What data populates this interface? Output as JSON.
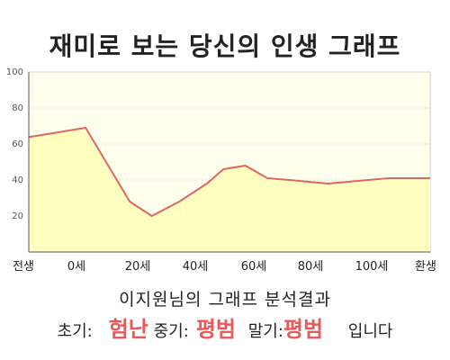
{
  "chart_data": {
    "type": "area",
    "title": "재미로 보는 당신의 인생 그래프",
    "x_tick_labels": [
      "전생",
      "0세",
      "20세",
      "40세",
      "60세",
      "80세",
      "100세",
      "환생"
    ],
    "ylim": [
      0,
      100
    ],
    "y_ticks": [
      20,
      40,
      60,
      80,
      100
    ],
    "grid": true,
    "points": [
      [
        0,
        64
      ],
      [
        1,
        69
      ],
      [
        1.8,
        28
      ],
      [
        2.2,
        20
      ],
      [
        2.7,
        28
      ],
      [
        3.2,
        38
      ],
      [
        3.5,
        46
      ],
      [
        3.9,
        48
      ],
      [
        4.3,
        41
      ],
      [
        4.7,
        40
      ],
      [
        5.4,
        38
      ],
      [
        6.5,
        41
      ]
    ],
    "line_color": "#e06666",
    "fill_color": "#ffffc0",
    "plot_bg": "#ffffee"
  },
  "result": {
    "title": "이지원님의 그래프 분석결과",
    "early_label": "초기:",
    "early_value": "험난",
    "middle_label": "중기:",
    "middle_value": "평범",
    "late_label": "말기:",
    "late_value": "평범",
    "suffix": "입니다"
  }
}
